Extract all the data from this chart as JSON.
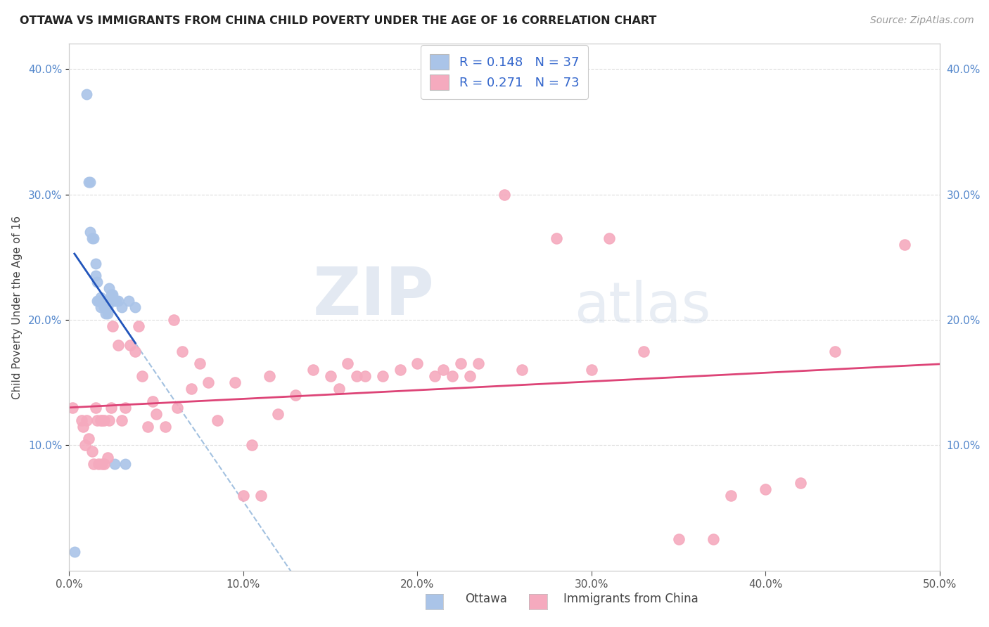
{
  "title": "OTTAWA VS IMMIGRANTS FROM CHINA CHILD POVERTY UNDER THE AGE OF 16 CORRELATION CHART",
  "source": "Source: ZipAtlas.com",
  "ylabel": "Child Poverty Under the Age of 16",
  "xlim": [
    0.0,
    0.5
  ],
  "ylim": [
    0.0,
    0.42
  ],
  "xticks": [
    0.0,
    0.1,
    0.2,
    0.3,
    0.4,
    0.5
  ],
  "yticks": [
    0.1,
    0.2,
    0.3,
    0.4
  ],
  "xtick_labels": [
    "0.0%",
    "10.0%",
    "20.0%",
    "30.0%",
    "40.0%",
    "50.0%"
  ],
  "ytick_labels_left": [
    "10.0%",
    "20.0%",
    "30.0%",
    "40.0%"
  ],
  "ytick_labels_right": [
    "10.0%",
    "20.0%",
    "30.0%",
    "40.0%"
  ],
  "watermark_zip": "ZIP",
  "watermark_atlas": "atlas",
  "ottawa_color": "#aac4e8",
  "china_color": "#f5aabe",
  "ottawa_line_color": "#2255bb",
  "china_line_color": "#dd4477",
  "ottawa_dashed_color": "#99bbdd",
  "ottawa_R": 0.148,
  "ottawa_N": 37,
  "china_R": 0.271,
  "china_N": 73,
  "ottawa_points_x": [
    0.003,
    0.01,
    0.011,
    0.012,
    0.012,
    0.013,
    0.014,
    0.015,
    0.015,
    0.016,
    0.016,
    0.017,
    0.017,
    0.018,
    0.018,
    0.018,
    0.019,
    0.02,
    0.02,
    0.021,
    0.021,
    0.021,
    0.022,
    0.022,
    0.023,
    0.023,
    0.024,
    0.025,
    0.025,
    0.026,
    0.026,
    0.027,
    0.028,
    0.03,
    0.032,
    0.034,
    0.038
  ],
  "ottawa_points_y": [
    0.015,
    0.38,
    0.31,
    0.31,
    0.27,
    0.265,
    0.265,
    0.245,
    0.235,
    0.23,
    0.215,
    0.215,
    0.215,
    0.218,
    0.215,
    0.21,
    0.215,
    0.215,
    0.21,
    0.215,
    0.21,
    0.205,
    0.21,
    0.205,
    0.225,
    0.215,
    0.22,
    0.22,
    0.215,
    0.215,
    0.085,
    0.215,
    0.215,
    0.21,
    0.085,
    0.215,
    0.21
  ],
  "china_points_x": [
    0.002,
    0.007,
    0.008,
    0.009,
    0.01,
    0.011,
    0.013,
    0.014,
    0.015,
    0.016,
    0.017,
    0.018,
    0.019,
    0.019,
    0.02,
    0.02,
    0.022,
    0.023,
    0.024,
    0.025,
    0.028,
    0.03,
    0.032,
    0.035,
    0.038,
    0.04,
    0.042,
    0.045,
    0.048,
    0.05,
    0.055,
    0.06,
    0.062,
    0.065,
    0.07,
    0.075,
    0.08,
    0.085,
    0.095,
    0.1,
    0.105,
    0.11,
    0.115,
    0.12,
    0.13,
    0.14,
    0.15,
    0.155,
    0.16,
    0.165,
    0.17,
    0.18,
    0.19,
    0.2,
    0.21,
    0.215,
    0.22,
    0.225,
    0.23,
    0.235,
    0.25,
    0.26,
    0.28,
    0.3,
    0.31,
    0.33,
    0.35,
    0.37,
    0.38,
    0.4,
    0.42,
    0.44,
    0.48
  ],
  "china_points_y": [
    0.13,
    0.12,
    0.115,
    0.1,
    0.12,
    0.105,
    0.095,
    0.085,
    0.13,
    0.12,
    0.085,
    0.12,
    0.085,
    0.12,
    0.085,
    0.12,
    0.09,
    0.12,
    0.13,
    0.195,
    0.18,
    0.12,
    0.13,
    0.18,
    0.175,
    0.195,
    0.155,
    0.115,
    0.135,
    0.125,
    0.115,
    0.2,
    0.13,
    0.175,
    0.145,
    0.165,
    0.15,
    0.12,
    0.15,
    0.06,
    0.1,
    0.06,
    0.155,
    0.125,
    0.14,
    0.16,
    0.155,
    0.145,
    0.165,
    0.155,
    0.155,
    0.155,
    0.16,
    0.165,
    0.155,
    0.16,
    0.155,
    0.165,
    0.155,
    0.165,
    0.3,
    0.16,
    0.265,
    0.16,
    0.265,
    0.175,
    0.025,
    0.025,
    0.06,
    0.065,
    0.07,
    0.175,
    0.26
  ]
}
